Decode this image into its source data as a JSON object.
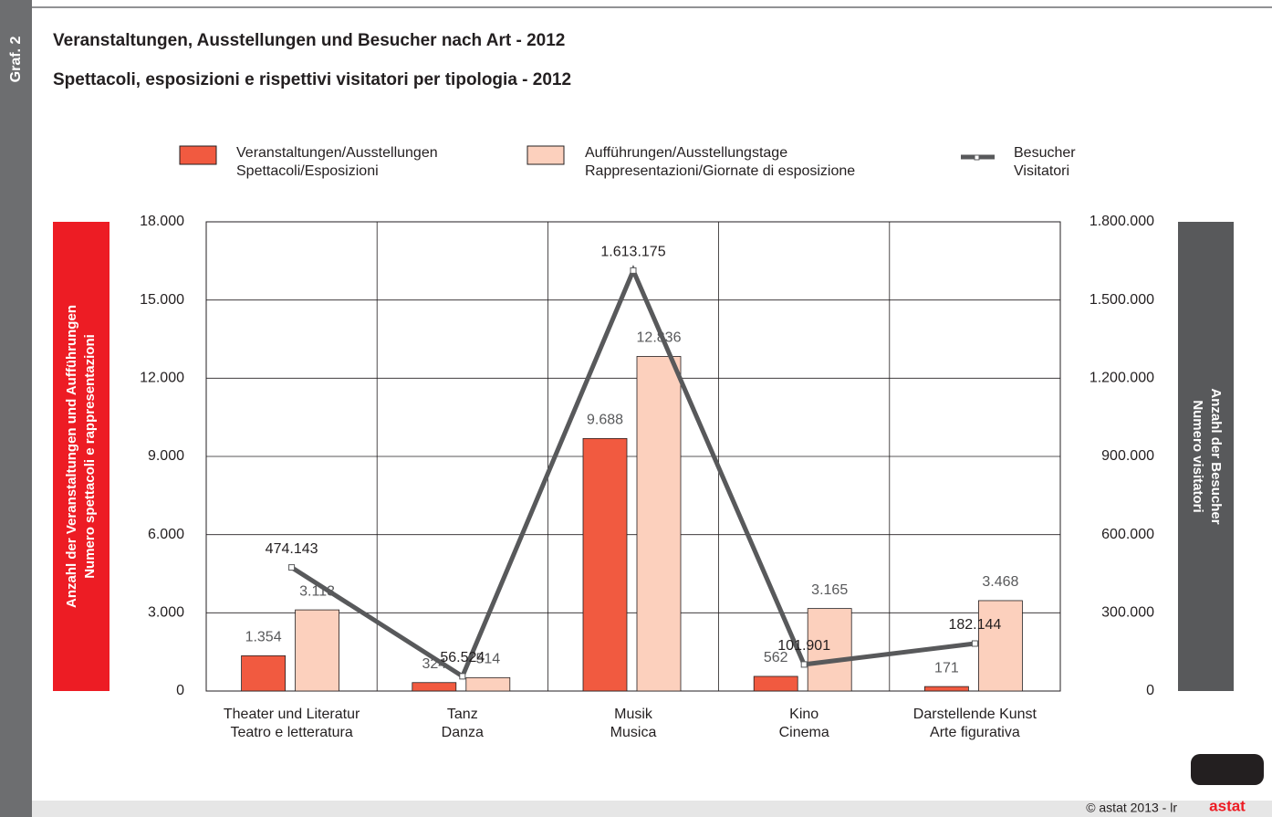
{
  "side_label": "Graf. 2",
  "footer": "© astat 2013 - lr",
  "logo": "astat",
  "chart_data": {
    "type": "bar",
    "title": "Veranstaltungen, Ausstellungen und Besucher nach Art - 2012",
    "subtitle": "Spettacoli, esposizioni e rispettivi visitatori per tipologia - 2012",
    "y_label": [
      "Anzahl der Veranstaltungen und Aufführungen",
      "Numero spettacoli e rappresentazioni"
    ],
    "y2_label": [
      "Anzahl der Besucher",
      "Numero visitatori"
    ],
    "categories": [
      [
        "Theater und Literatur",
        "Teatro e letteratura"
      ],
      [
        "Tanz",
        "Danza"
      ],
      [
        "Musik",
        "Musica"
      ],
      [
        "Kino",
        "Cinema"
      ],
      [
        "Darstellende Kunst",
        "Arte figurativa"
      ]
    ],
    "series": [
      {
        "name": [
          "Veranstaltungen/Ausstellungen",
          "Spettacoli/Esposizioni"
        ],
        "type": "bar",
        "color": "#f15a40",
        "values": [
          1354,
          324,
          9688,
          562,
          171
        ],
        "value_labels": [
          "1.354",
          "324",
          "9.688",
          "562",
          "171"
        ]
      },
      {
        "name": [
          "Aufführungen/Ausstellungstage",
          "Rappresentazioni/Giornate di esposizione"
        ],
        "type": "bar",
        "color": "#fcd0bd",
        "values": [
          3113,
          514,
          12836,
          3165,
          3468
        ],
        "value_labels": [
          "3.113",
          "514",
          "12.836",
          "3.165",
          "3.468"
        ]
      },
      {
        "name": [
          "Besucher",
          "Visitatori"
        ],
        "type": "line",
        "axis": "y2",
        "color": "#58595b",
        "values": [
          474143,
          56524,
          1613175,
          101901,
          182144
        ],
        "value_labels": [
          "474.143",
          "56.524",
          "1.613.175",
          "101.901",
          "182.144"
        ]
      }
    ],
    "ylim": [
      0,
      18000
    ],
    "yticks": [
      0,
      {
        "value": 3000,
        "label": "3.000"
      },
      {
        "value": 6000,
        "label": "6.000"
      },
      {
        "value": 9000,
        "label": "9.000"
      },
      {
        "value": 12000,
        "label": "12.000"
      },
      {
        "value": 15000,
        "label": "15.000"
      },
      {
        "value": 18000,
        "label": "18.000"
      }
    ],
    "y2lim": [
      0,
      1800000
    ],
    "y2ticks": [
      0,
      {
        "value": 300000,
        "label": "300.000"
      },
      {
        "value": 600000,
        "label": "600.000"
      },
      {
        "value": 900000,
        "label": "900.000"
      },
      {
        "value": 1200000,
        "label": "1.200.000"
      },
      {
        "value": 1500000,
        "label": "1.500.000"
      },
      {
        "value": 1800000,
        "label": "1.800.000"
      }
    ],
    "grid": true
  }
}
